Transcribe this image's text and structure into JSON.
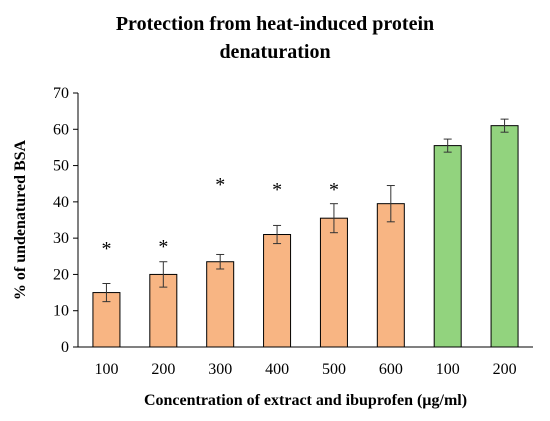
{
  "chart_data": {
    "type": "bar",
    "title_lines": [
      "Protection from heat-induced protein",
      "denaturation"
    ],
    "xlabel": "Concentration of extract and ibuprofen (µg/ml)",
    "ylabel": "% of undenatured BSA",
    "ylim": [
      0,
      70
    ],
    "yticks": [
      "0",
      "10",
      "20",
      "30",
      "40",
      "50",
      "60",
      "70"
    ],
    "categories": [
      "100",
      "200",
      "300",
      "400",
      "500",
      "600",
      "100",
      "200"
    ],
    "values": [
      15,
      20,
      23.5,
      31,
      35.5,
      39.5,
      55.5,
      61
    ],
    "errors": [
      2.5,
      3.5,
      2,
      2.5,
      4,
      5,
      1.8,
      1.8
    ],
    "annotations": [
      "*",
      "*",
      "*",
      "*",
      "*",
      "",
      "",
      ""
    ],
    "groups": [
      {
        "count": 6,
        "color": "#f8b583"
      },
      {
        "count": 2,
        "color": "#92d37e"
      }
    ],
    "grid": false,
    "legend": "none"
  }
}
